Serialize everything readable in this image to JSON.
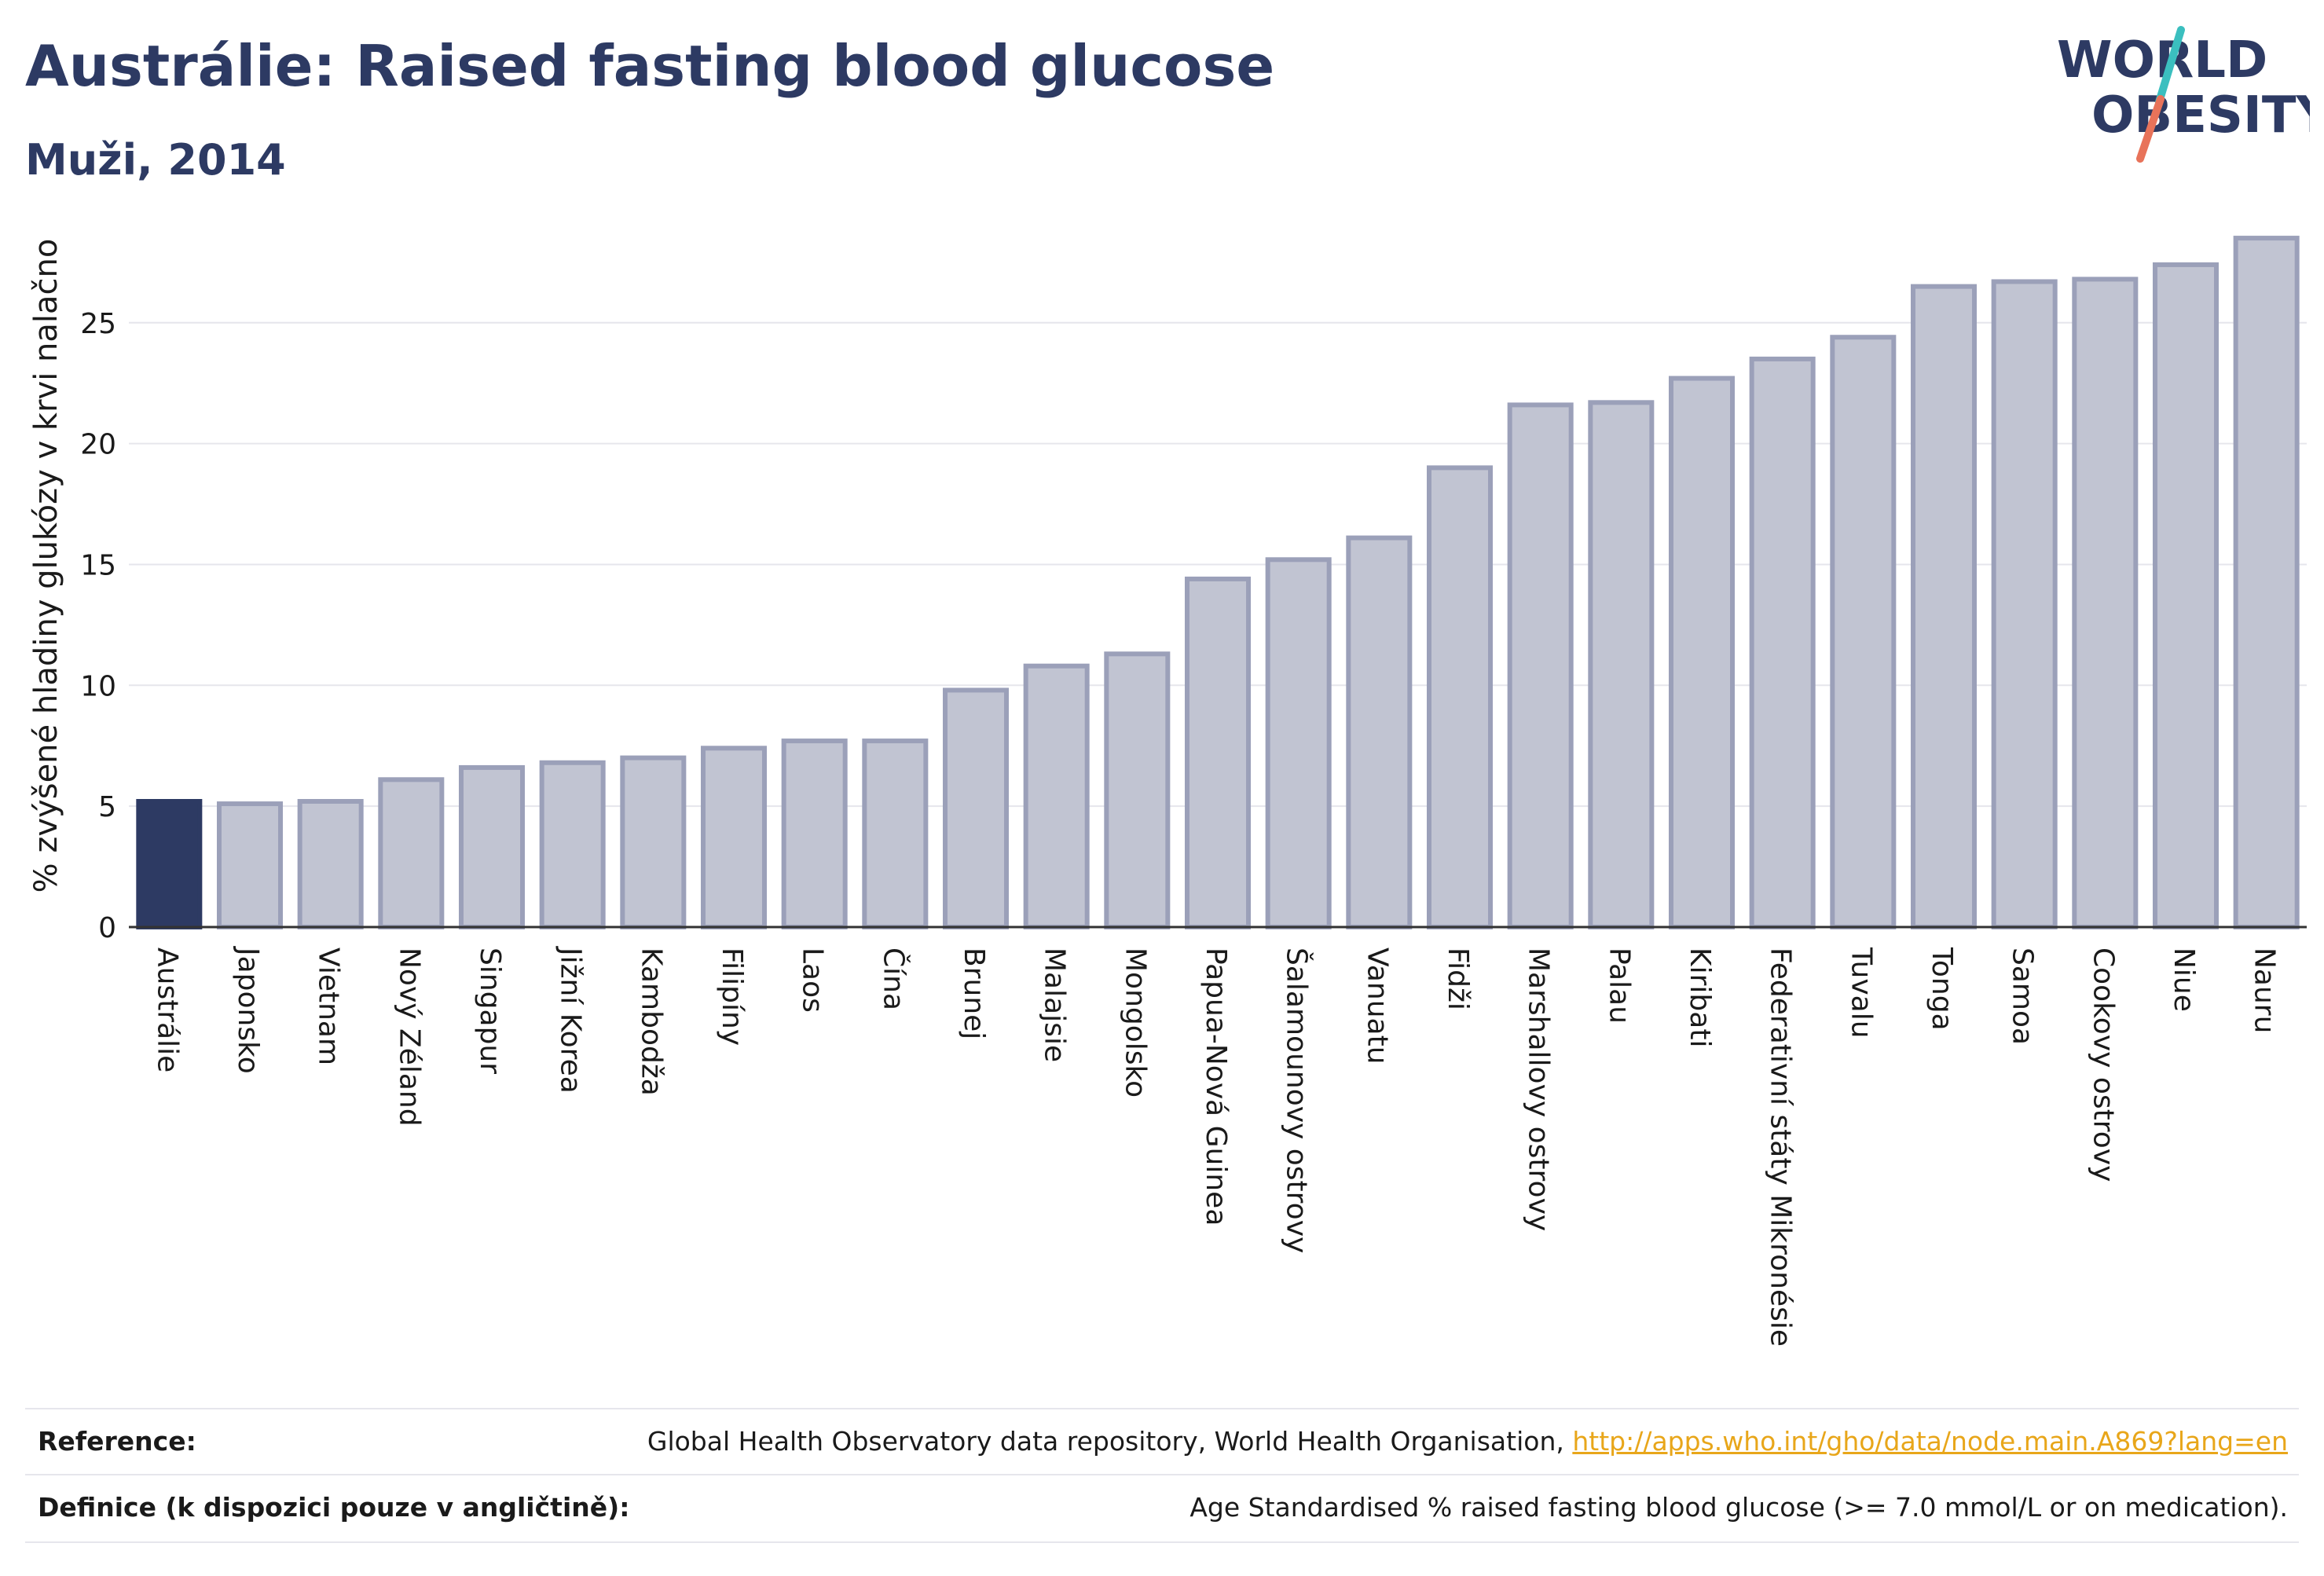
{
  "header": {
    "title": "Austrálie: Raised fasting blood glucose",
    "subtitle": "Muži, 2014"
  },
  "logo": {
    "line1": "WORLD",
    "line2": "OBESITY",
    "color": "#2d3a63",
    "accent_teal": "#3bbfbf",
    "accent_coral": "#e8735a"
  },
  "chart_data": {
    "type": "bar",
    "ylabel": "% zvýšené hladiny glukózy v krvi nalačno",
    "xlabel": "",
    "ylim": [
      0,
      28.6
    ],
    "yticks": [
      0,
      5,
      10,
      15,
      20,
      25
    ],
    "grid": true,
    "categories": [
      "Austrálie",
      "Japonsko",
      "Vietnam",
      "Nový Zéland",
      "Singapur",
      "Jižní Korea",
      "Kambodža",
      "Filipíny",
      "Laos",
      "Čína",
      "Brunej",
      "Malajsie",
      "Mongolsko",
      "Papua-Nová Guinea",
      "Šalamounovy ostrovy",
      "Vanuatu",
      "Fidži",
      "Marshallovy ostrovy",
      "Palau",
      "Kiribati",
      "Federativní státy Mikronésie",
      "Tuvalu",
      "Tonga",
      "Samoa",
      "Cookovy ostrovy",
      "Niue",
      "Nauru"
    ],
    "values": [
      5.2,
      5.1,
      5.2,
      6.1,
      6.6,
      6.8,
      7.0,
      7.4,
      7.7,
      7.7,
      9.8,
      10.8,
      11.3,
      14.4,
      15.2,
      16.1,
      19.0,
      21.6,
      21.7,
      22.7,
      23.5,
      24.4,
      26.5,
      26.7,
      26.8,
      27.4,
      28.5
    ],
    "highlight": "Austrálie",
    "colors": {
      "highlight": "#2d3a63",
      "bar_fill": "#c1c4d2",
      "bar_stroke": "#9ba0b9",
      "grid": "#e6e6ec",
      "axis": "#333333"
    }
  },
  "footer": {
    "reference_label": "Reference:",
    "reference_text": "Global Health Observatory data repository, World Health Organisation, ",
    "reference_link": "http://apps.who.int/gho/data/node.main.A869?lang=en",
    "definition_label": "Definice (k dispozici pouze v angličtině):",
    "definition_text": "Age Standardised % raised fasting blood glucose (>= 7.0 mmol/L or on medication)."
  }
}
